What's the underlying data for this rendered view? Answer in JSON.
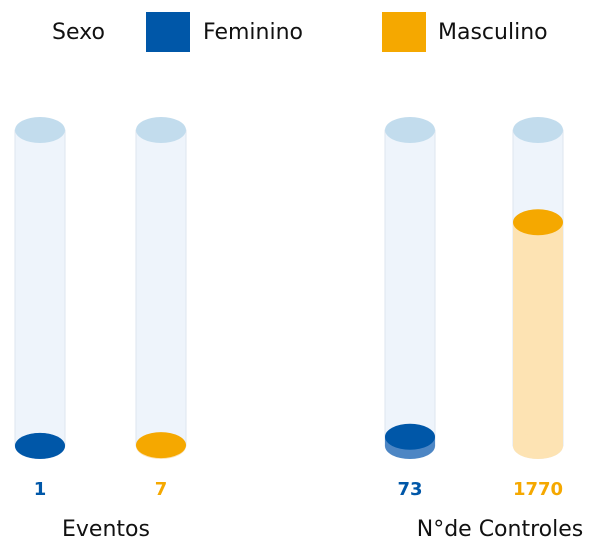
{
  "chart_data": {
    "type": "cylinder-bar",
    "legend_title": "Sexo",
    "categories": [
      "Eventos",
      "N°de Controles"
    ],
    "series": [
      {
        "name": "Feminino",
        "color": "#0057a8",
        "values": [
          1,
          73
        ]
      },
      {
        "name": "Masculino",
        "color": "#f5a800",
        "values": [
          7,
          1770
        ]
      }
    ],
    "ylim": [
      0,
      2500
    ]
  }
}
